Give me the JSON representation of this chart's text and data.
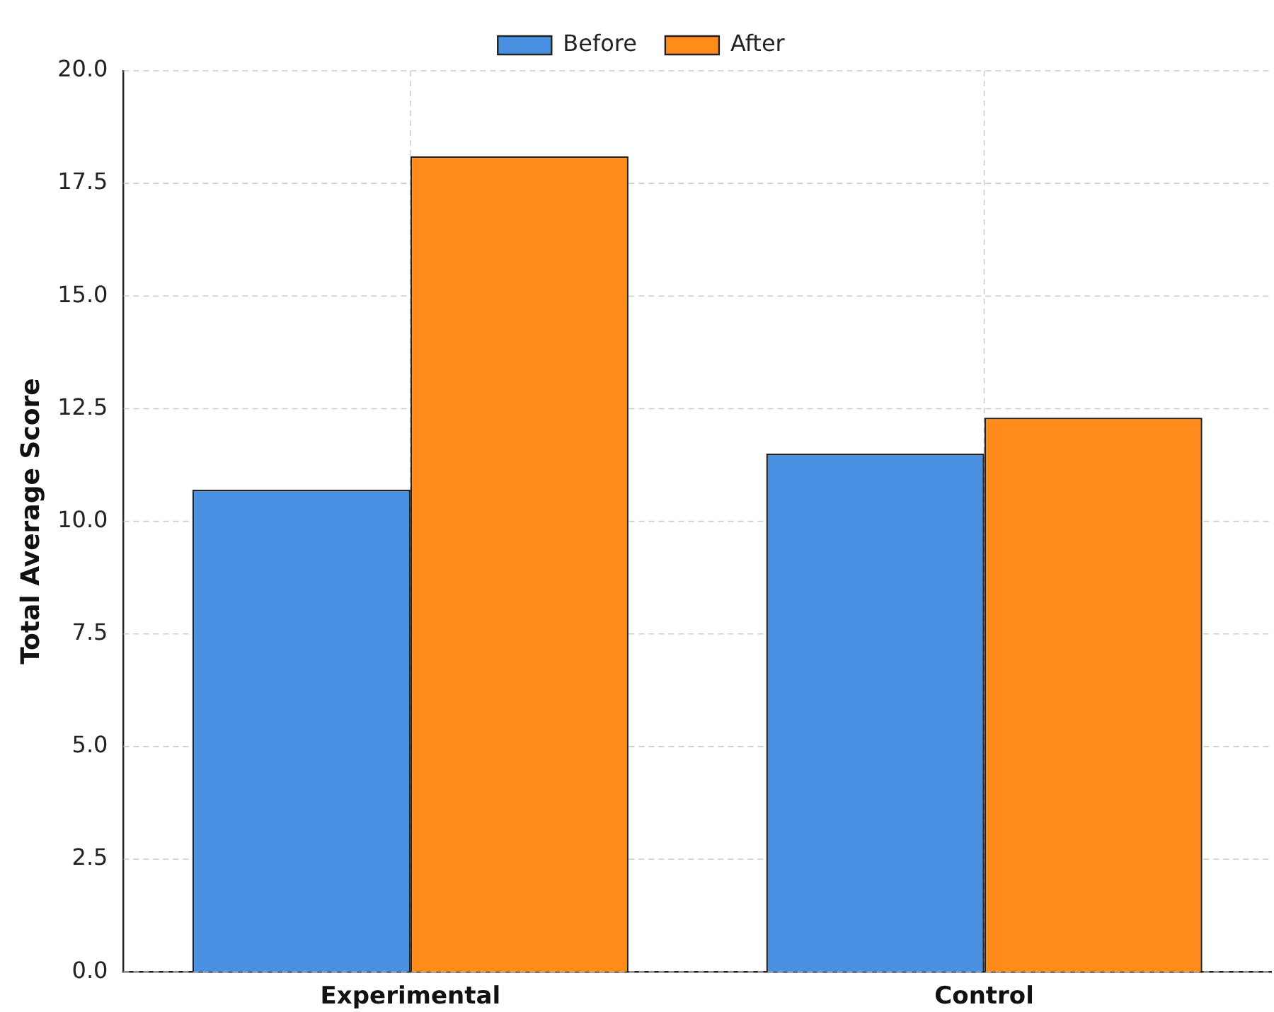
{
  "chart_data": {
    "type": "bar",
    "ylabel": "Total Average Score",
    "categories": [
      "Experimental",
      "Control"
    ],
    "series": [
      {
        "name": "Before",
        "color": "#4a90e2",
        "values": [
          10.7,
          11.5
        ]
      },
      {
        "name": "After",
        "color": "#ff8c1a",
        "values": [
          18.1,
          12.3
        ]
      }
    ],
    "ylim": [
      0,
      20
    ],
    "yticks": [
      {
        "value": 0,
        "label": "0.0"
      },
      {
        "value": 2.5,
        "label": "2.5"
      },
      {
        "value": 5,
        "label": "5.0"
      },
      {
        "value": 7.5,
        "label": "7.5"
      },
      {
        "value": 10,
        "label": "10.0"
      },
      {
        "value": 12.5,
        "label": "12.5"
      },
      {
        "value": 15,
        "label": "15.0"
      },
      {
        "value": 17.5,
        "label": "17.5"
      },
      {
        "value": 20,
        "label": "20.0"
      }
    ],
    "grid": true,
    "legend": "top"
  }
}
